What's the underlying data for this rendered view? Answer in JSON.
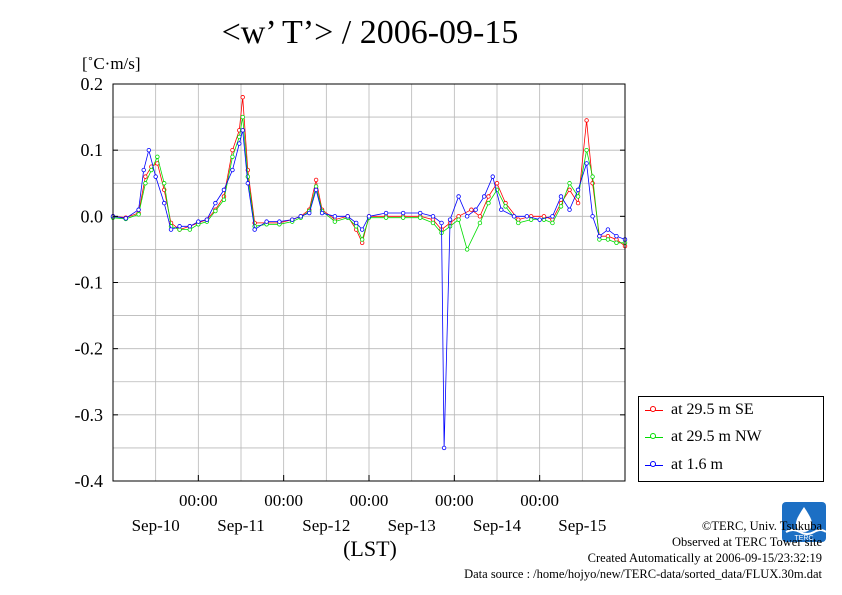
{
  "title": "<w’ T’> / 2006-09-15",
  "unit_label": "[˚C·m/s]",
  "x_axis_label": "(LST)",
  "legend": {
    "items": [
      {
        "label": "at 29.5 m SE",
        "color": "#ff0000"
      },
      {
        "label": "at 29.5 m NW",
        "color": "#00dd00"
      },
      {
        "label": "at 1.6 m",
        "color": "#0000ff"
      }
    ]
  },
  "footer": {
    "copyright": "©TERC, Univ. Tsukuba",
    "observed": "Observed at TERC Tower site",
    "created": "Created Automatically at 2006-09-15/23:32:19",
    "source": "Data source : /home/hojyo/new/TERC-data/sorted_data/FLUX.30m.dat"
  },
  "logo_text": "TERC",
  "chart_data": {
    "type": "line",
    "title": "<w’ T’> / 2006-09-15",
    "ylabel": "[˚C·m/s]",
    "xlabel": "(LST)",
    "ylim": [
      -0.4,
      0.2
    ],
    "xlim": [
      0,
      6
    ],
    "y_ticks": [
      0.2,
      0.1,
      0.0,
      -0.1,
      -0.2,
      -0.3,
      -0.4
    ],
    "y_tick_labels": [
      "0.2",
      "0.1",
      "0.0",
      "-0.1",
      "-0.2",
      "-0.3",
      "-0.4"
    ],
    "x_ticks": [
      1,
      2,
      3,
      4,
      5
    ],
    "x_tick_labels": [
      "00:00",
      "00:00",
      "00:00",
      "00:00",
      "00:00"
    ],
    "day_labels": [
      {
        "x": 0.5,
        "label": "Sep-10"
      },
      {
        "x": 1.5,
        "label": "Sep-11"
      },
      {
        "x": 2.5,
        "label": "Sep-12"
      },
      {
        "x": 3.5,
        "label": "Sep-13"
      },
      {
        "x": 4.5,
        "label": "Sep-14"
      },
      {
        "x": 5.5,
        "label": "Sep-15"
      }
    ],
    "grid": true,
    "legend_position": "outside-right-bottom",
    "series": [
      {
        "name": "at 29.5 m SE",
        "color": "#ff0000",
        "points": [
          [
            0.0,
            0.0
          ],
          [
            0.15,
            -0.002
          ],
          [
            0.3,
            0.005
          ],
          [
            0.38,
            0.06
          ],
          [
            0.45,
            0.075
          ],
          [
            0.52,
            0.08
          ],
          [
            0.6,
            0.04
          ],
          [
            0.68,
            -0.01
          ],
          [
            0.78,
            -0.02
          ],
          [
            0.9,
            -0.015
          ],
          [
            1.0,
            -0.01
          ],
          [
            1.1,
            -0.005
          ],
          [
            1.2,
            0.01
          ],
          [
            1.3,
            0.03
          ],
          [
            1.4,
            0.1
          ],
          [
            1.48,
            0.13
          ],
          [
            1.52,
            0.18
          ],
          [
            1.58,
            0.07
          ],
          [
            1.66,
            -0.01
          ],
          [
            1.8,
            -0.01
          ],
          [
            1.95,
            -0.01
          ],
          [
            2.1,
            -0.005
          ],
          [
            2.2,
            0.0
          ],
          [
            2.3,
            0.01
          ],
          [
            2.38,
            0.055
          ],
          [
            2.45,
            0.01
          ],
          [
            2.6,
            -0.005
          ],
          [
            2.75,
            0.0
          ],
          [
            2.85,
            -0.02
          ],
          [
            2.92,
            -0.04
          ],
          [
            3.0,
            0.0
          ],
          [
            3.2,
            0.0
          ],
          [
            3.4,
            0.0
          ],
          [
            3.6,
            0.0
          ],
          [
            3.75,
            -0.005
          ],
          [
            3.85,
            -0.02
          ],
          [
            3.95,
            -0.01
          ],
          [
            4.05,
            0.0
          ],
          [
            4.2,
            0.01
          ],
          [
            4.3,
            0.0
          ],
          [
            4.4,
            0.03
          ],
          [
            4.5,
            0.05
          ],
          [
            4.6,
            0.02
          ],
          [
            4.75,
            -0.005
          ],
          [
            4.9,
            0.0
          ],
          [
            5.05,
            0.0
          ],
          [
            5.15,
            -0.005
          ],
          [
            5.25,
            0.02
          ],
          [
            5.35,
            0.04
          ],
          [
            5.45,
            0.02
          ],
          [
            5.55,
            0.145
          ],
          [
            5.62,
            0.05
          ],
          [
            5.7,
            -0.03
          ],
          [
            5.8,
            -0.03
          ],
          [
            5.9,
            -0.035
          ],
          [
            6.0,
            -0.045
          ]
        ]
      },
      {
        "name": "at 29.5 m NW",
        "color": "#00dd00",
        "points": [
          [
            0.0,
            -0.002
          ],
          [
            0.15,
            -0.004
          ],
          [
            0.3,
            0.003
          ],
          [
            0.38,
            0.05
          ],
          [
            0.45,
            0.07
          ],
          [
            0.52,
            0.09
          ],
          [
            0.6,
            0.05
          ],
          [
            0.68,
            -0.015
          ],
          [
            0.78,
            -0.02
          ],
          [
            0.9,
            -0.02
          ],
          [
            1.0,
            -0.012
          ],
          [
            1.1,
            -0.008
          ],
          [
            1.2,
            0.008
          ],
          [
            1.3,
            0.025
          ],
          [
            1.4,
            0.09
          ],
          [
            1.48,
            0.12
          ],
          [
            1.52,
            0.15
          ],
          [
            1.58,
            0.06
          ],
          [
            1.66,
            -0.015
          ],
          [
            1.8,
            -0.012
          ],
          [
            1.95,
            -0.012
          ],
          [
            2.1,
            -0.008
          ],
          [
            2.2,
            -0.002
          ],
          [
            2.3,
            0.008
          ],
          [
            2.38,
            0.045
          ],
          [
            2.45,
            0.008
          ],
          [
            2.6,
            -0.008
          ],
          [
            2.75,
            -0.002
          ],
          [
            2.85,
            -0.015
          ],
          [
            2.92,
            -0.035
          ],
          [
            3.0,
            -0.002
          ],
          [
            3.2,
            -0.002
          ],
          [
            3.4,
            -0.002
          ],
          [
            3.6,
            -0.002
          ],
          [
            3.75,
            -0.01
          ],
          [
            3.85,
            -0.025
          ],
          [
            3.95,
            -0.015
          ],
          [
            4.05,
            -0.005
          ],
          [
            4.15,
            -0.05
          ],
          [
            4.3,
            -0.01
          ],
          [
            4.4,
            0.02
          ],
          [
            4.5,
            0.04
          ],
          [
            4.6,
            0.015
          ],
          [
            4.75,
            -0.01
          ],
          [
            4.9,
            -0.005
          ],
          [
            5.05,
            -0.005
          ],
          [
            5.15,
            -0.01
          ],
          [
            5.25,
            0.015
          ],
          [
            5.35,
            0.05
          ],
          [
            5.45,
            0.03
          ],
          [
            5.55,
            0.1
          ],
          [
            5.62,
            0.06
          ],
          [
            5.7,
            -0.035
          ],
          [
            5.8,
            -0.035
          ],
          [
            5.9,
            -0.04
          ],
          [
            6.0,
            -0.04
          ]
        ]
      },
      {
        "name": "at 1.6 m",
        "color": "#0000ff",
        "points": [
          [
            0.0,
            0.0
          ],
          [
            0.15,
            -0.003
          ],
          [
            0.3,
            0.01
          ],
          [
            0.36,
            0.07
          ],
          [
            0.42,
            0.1
          ],
          [
            0.5,
            0.06
          ],
          [
            0.6,
            0.02
          ],
          [
            0.68,
            -0.02
          ],
          [
            0.78,
            -0.015
          ],
          [
            0.9,
            -0.015
          ],
          [
            1.0,
            -0.008
          ],
          [
            1.1,
            -0.005
          ],
          [
            1.2,
            0.02
          ],
          [
            1.3,
            0.04
          ],
          [
            1.4,
            0.07
          ],
          [
            1.48,
            0.11
          ],
          [
            1.52,
            0.13
          ],
          [
            1.58,
            0.05
          ],
          [
            1.66,
            -0.02
          ],
          [
            1.8,
            -0.008
          ],
          [
            1.95,
            -0.008
          ],
          [
            2.1,
            -0.005
          ],
          [
            2.2,
            0.0
          ],
          [
            2.3,
            0.005
          ],
          [
            2.38,
            0.04
          ],
          [
            2.45,
            0.005
          ],
          [
            2.6,
            0.0
          ],
          [
            2.75,
            0.0
          ],
          [
            2.85,
            -0.01
          ],
          [
            2.92,
            -0.02
          ],
          [
            3.0,
            0.0
          ],
          [
            3.2,
            0.005
          ],
          [
            3.4,
            0.005
          ],
          [
            3.6,
            0.005
          ],
          [
            3.75,
            0.0
          ],
          [
            3.85,
            -0.01
          ],
          [
            3.88,
            -0.35
          ],
          [
            3.95,
            -0.005
          ],
          [
            4.05,
            0.03
          ],
          [
            4.15,
            0.0
          ],
          [
            4.25,
            0.01
          ],
          [
            4.35,
            0.03
          ],
          [
            4.45,
            0.06
          ],
          [
            4.55,
            0.01
          ],
          [
            4.7,
            0.0
          ],
          [
            4.85,
            0.0
          ],
          [
            5.0,
            -0.005
          ],
          [
            5.15,
            0.0
          ],
          [
            5.25,
            0.03
          ],
          [
            5.35,
            0.01
          ],
          [
            5.45,
            0.04
          ],
          [
            5.55,
            0.08
          ],
          [
            5.62,
            0.0
          ],
          [
            5.7,
            -0.03
          ],
          [
            5.8,
            -0.02
          ],
          [
            5.9,
            -0.03
          ],
          [
            6.0,
            -0.035
          ]
        ]
      }
    ]
  }
}
